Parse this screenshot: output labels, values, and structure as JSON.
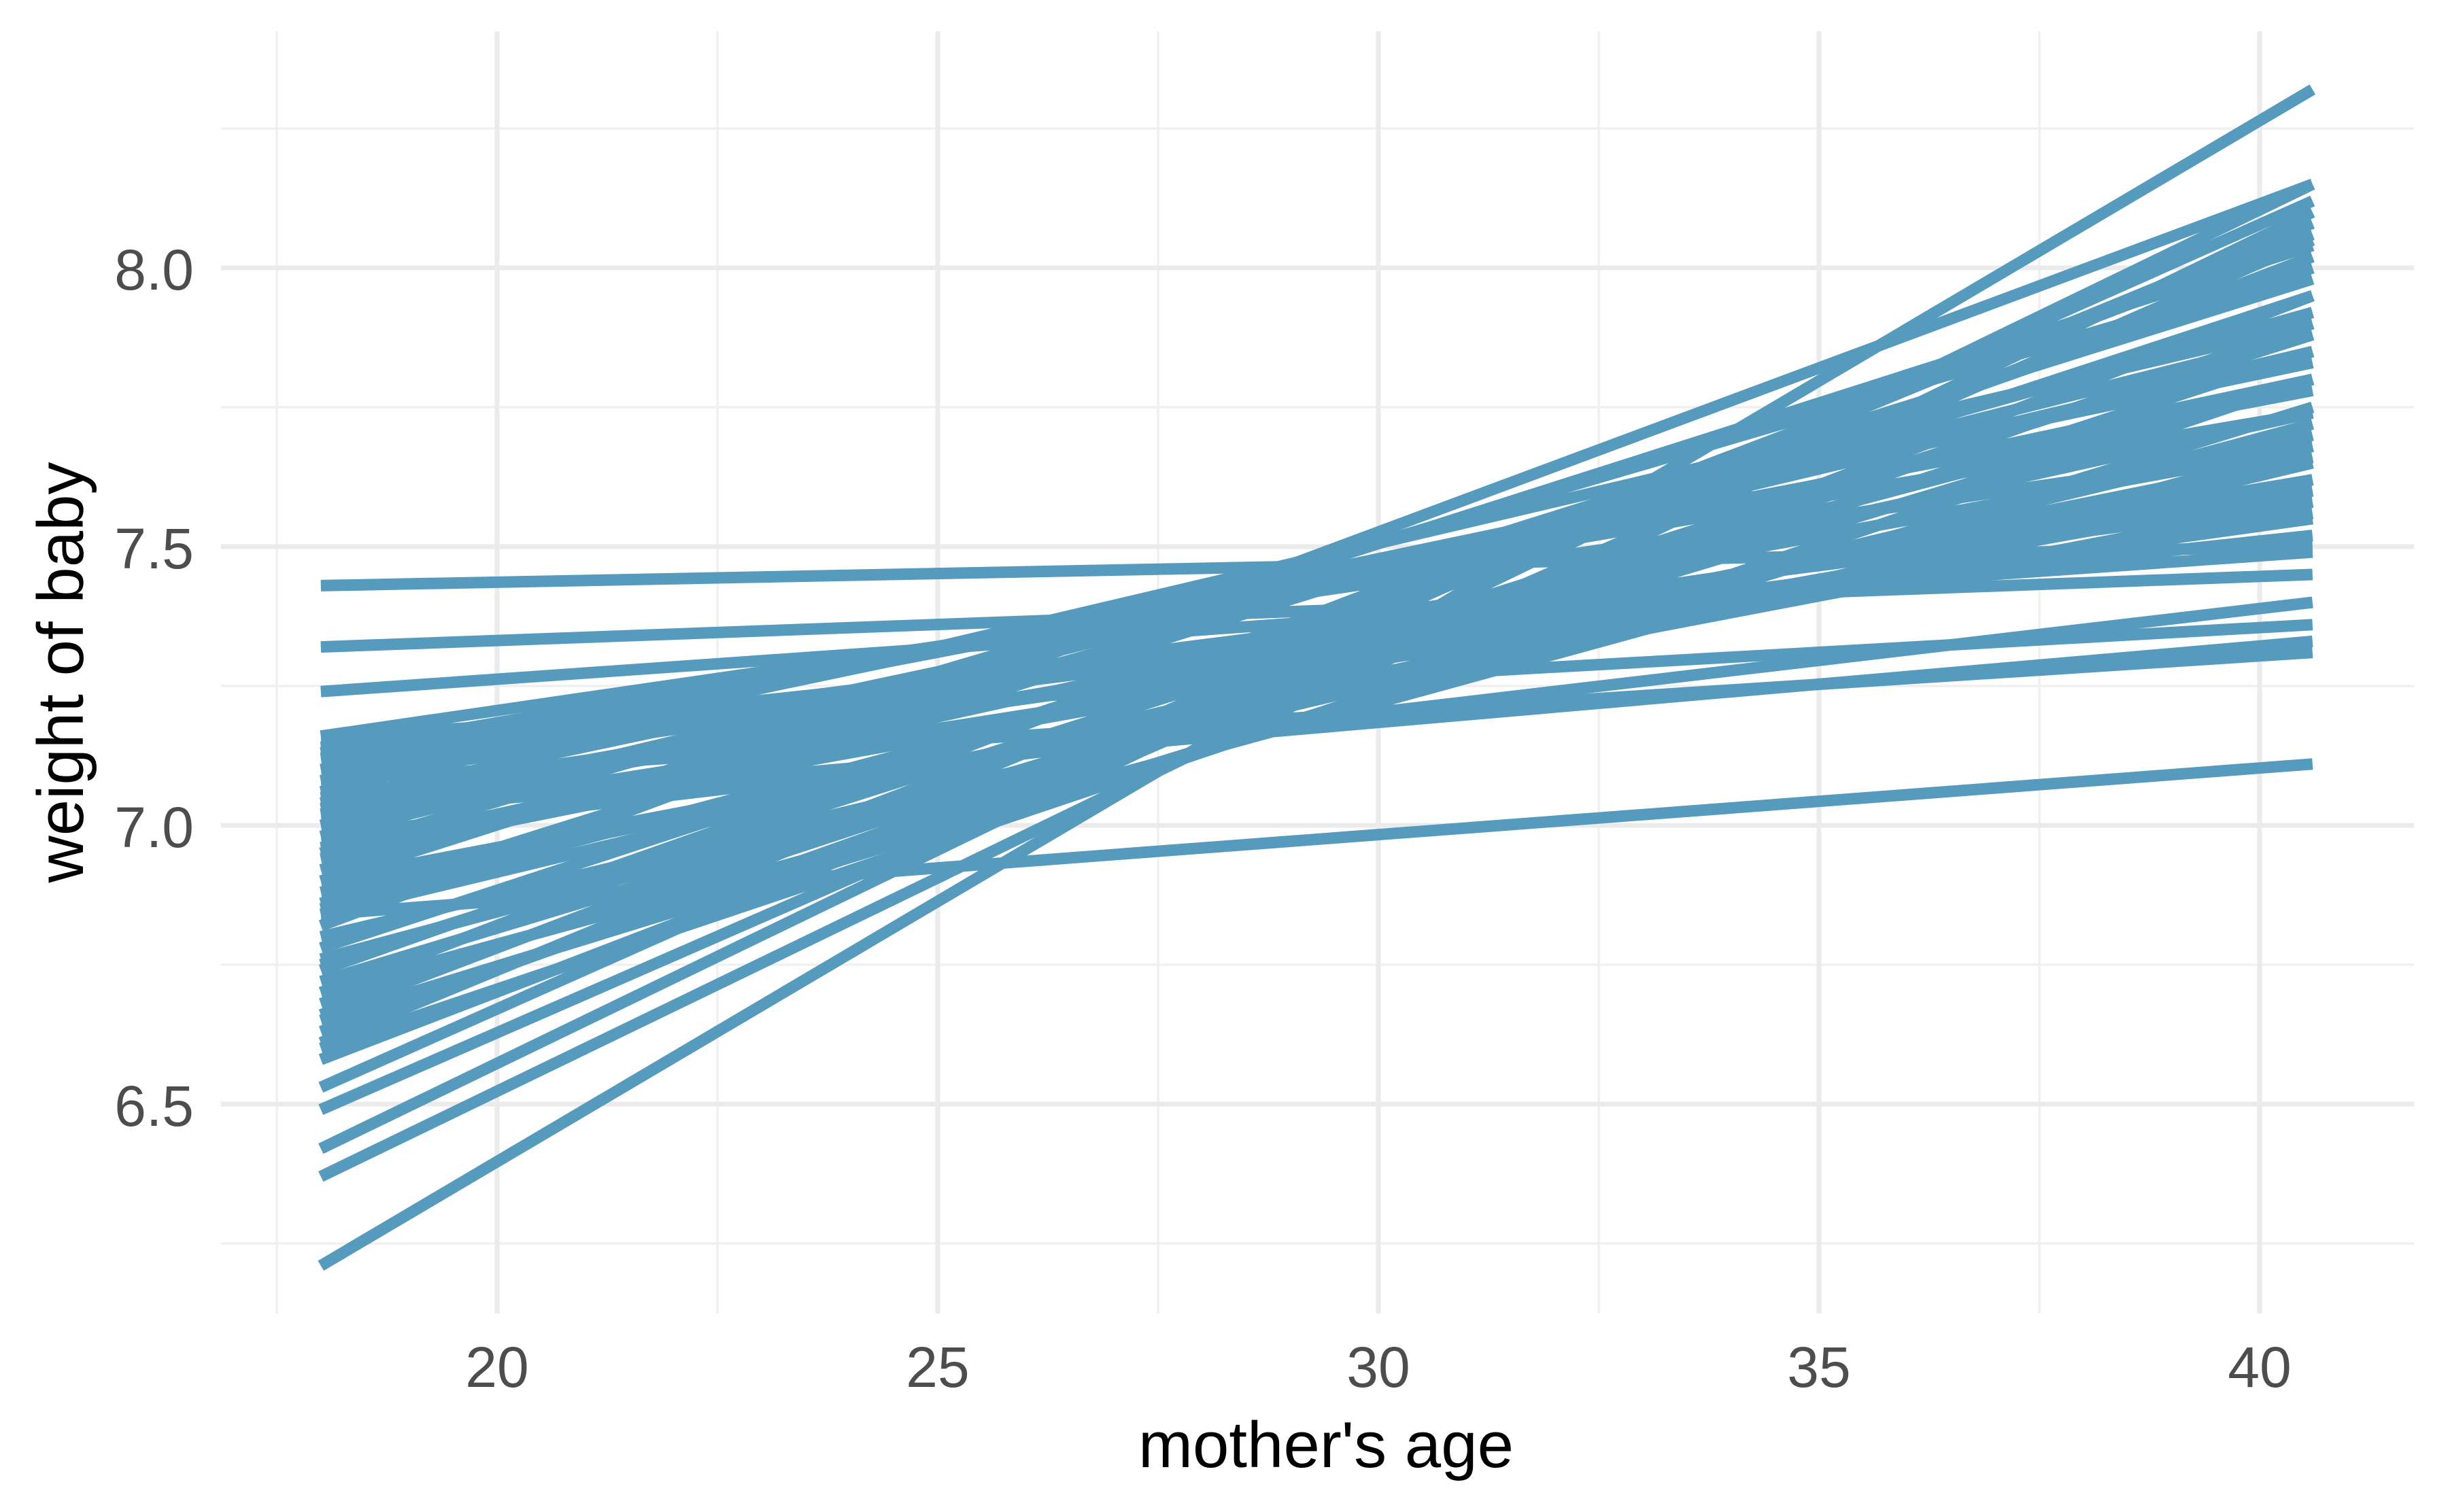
{
  "chart_data": {
    "type": "line",
    "description": "Spaghetti plot of posterior regression lines: each straight blue segment spans the observed range of mother's age and shows predicted baby weight.",
    "title": "",
    "xlabel": "mother's age",
    "ylabel": "weight of baby",
    "legend": "none",
    "grid": true,
    "x_axis": {
      "tick_values": [
        20,
        25,
        30,
        35,
        40
      ],
      "tick_labels": [
        "20",
        "25",
        "30",
        "35",
        "40"
      ],
      "minor_breaks": [
        17.5,
        22.5,
        27.5,
        32.5,
        37.5
      ],
      "range_shown": [
        16.9,
        41.8
      ]
    },
    "y_axis": {
      "tick_values": [
        6.5,
        7.0,
        7.5,
        8.0
      ],
      "tick_labels": [
        "6.5",
        "7.0",
        "7.5",
        "8.0"
      ],
      "minor_breaks": [
        6.25,
        6.75,
        7.25,
        7.75,
        8.25
      ],
      "range_shown": [
        6.11,
        8.43
      ]
    },
    "line_x_start": 18,
    "line_x_end": 40.6,
    "lines": [
      [
        6.21,
        8.32
      ],
      [
        6.84,
        7.11
      ],
      [
        7.43,
        7.5
      ],
      [
        7.32,
        7.45
      ],
      [
        7.24,
        7.49
      ],
      [
        6.37,
        8.1
      ],
      [
        6.42,
        8.15
      ],
      [
        6.49,
        8.05
      ],
      [
        6.53,
        8.12
      ],
      [
        6.58,
        7.95
      ],
      [
        6.61,
        8.08
      ],
      [
        6.63,
        7.9
      ],
      [
        6.66,
        8.02
      ],
      [
        6.68,
        7.85
      ],
      [
        6.7,
        8.06
      ],
      [
        6.72,
        7.8
      ],
      [
        6.74,
        8.0
      ],
      [
        6.76,
        7.72
      ],
      [
        6.78,
        7.95
      ],
      [
        6.8,
        7.65
      ],
      [
        6.82,
        8.15
      ],
      [
        6.84,
        7.7
      ],
      [
        6.86,
        7.98
      ],
      [
        6.88,
        7.62
      ],
      [
        6.9,
        8.04
      ],
      [
        6.9,
        7.58
      ],
      [
        6.92,
        7.92
      ],
      [
        6.94,
        7.66
      ],
      [
        6.95,
        8.0
      ],
      [
        6.96,
        7.6
      ],
      [
        6.98,
        7.88
      ],
      [
        7.0,
        7.56
      ],
      [
        7.0,
        7.85
      ],
      [
        7.02,
        7.62
      ],
      [
        7.04,
        7.8
      ],
      [
        7.05,
        7.55
      ],
      [
        7.06,
        7.9
      ],
      [
        7.08,
        7.6
      ],
      [
        7.08,
        7.83
      ],
      [
        7.1,
        7.55
      ],
      [
        7.1,
        7.78
      ],
      [
        7.12,
        7.58
      ],
      [
        7.13,
        7.74
      ],
      [
        7.14,
        7.52
      ],
      [
        7.16,
        7.68
      ],
      [
        7.16,
        7.36
      ],
      [
        7.02,
        7.33
      ],
      [
        6.98,
        7.4
      ],
      [
        7.08,
        7.31
      ],
      [
        6.65,
        7.75
      ],
      [
        6.75,
        7.88
      ],
      [
        6.85,
        7.8
      ],
      [
        6.95,
        7.74
      ],
      [
        7.03,
        7.68
      ],
      [
        6.7,
        7.68
      ],
      [
        6.6,
        7.8
      ]
    ],
    "styles": {
      "line_color": "#569ABD",
      "grid_major_color": "#EBEBEB",
      "grid_minor_color": "#F0F0F0",
      "tick_label_color": "#4D4D4D",
      "axis_title_color": "#000000",
      "background": "#FFFFFF"
    }
  }
}
